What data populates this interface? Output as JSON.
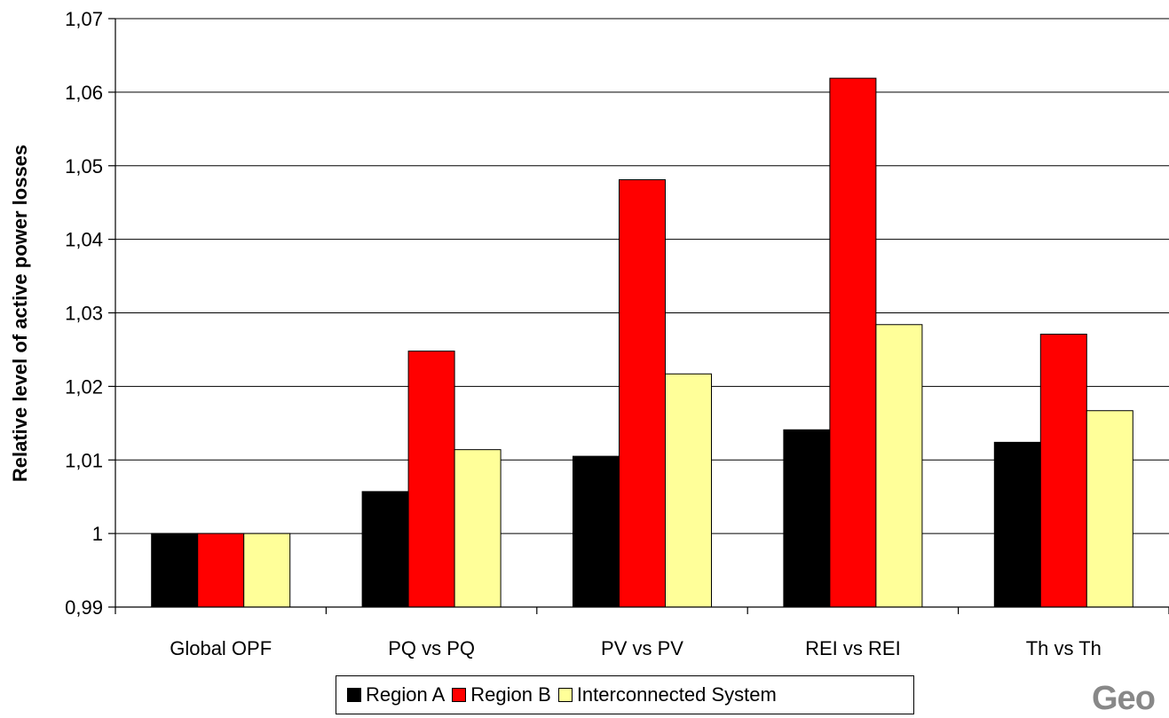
{
  "chart_data": {
    "type": "bar",
    "categories": [
      "Global OPF",
      "PQ vs PQ",
      "PV vs PV",
      "REI vs REI",
      "Th vs Th"
    ],
    "series": [
      {
        "name": "Region A",
        "color": "#000000",
        "values": [
          1.0,
          1.0057,
          1.0105,
          1.0141,
          1.0124
        ]
      },
      {
        "name": "Region B",
        "color": "#ff0000",
        "values": [
          1.0,
          1.0248,
          1.0481,
          1.0619,
          1.0271
        ]
      },
      {
        "name": "Interconnected System",
        "color": "#ffff99",
        "values": [
          1.0,
          1.0114,
          1.0217,
          1.0284,
          1.0167
        ]
      }
    ],
    "ylabel": "Relative level of active power losses",
    "ylim": [
      0.99,
      1.07
    ],
    "yticks": [
      0.99,
      1.0,
      1.01,
      1.02,
      1.03,
      1.04,
      1.05,
      1.06,
      1.07
    ],
    "ytick_labels": [
      "0,99",
      "1",
      "1,01",
      "1,02",
      "1,03",
      "1,04",
      "1,05",
      "1,06",
      "1,07"
    ],
    "grid": true,
    "legend_position": "bottom"
  },
  "watermark": {
    "text": "Geo"
  }
}
